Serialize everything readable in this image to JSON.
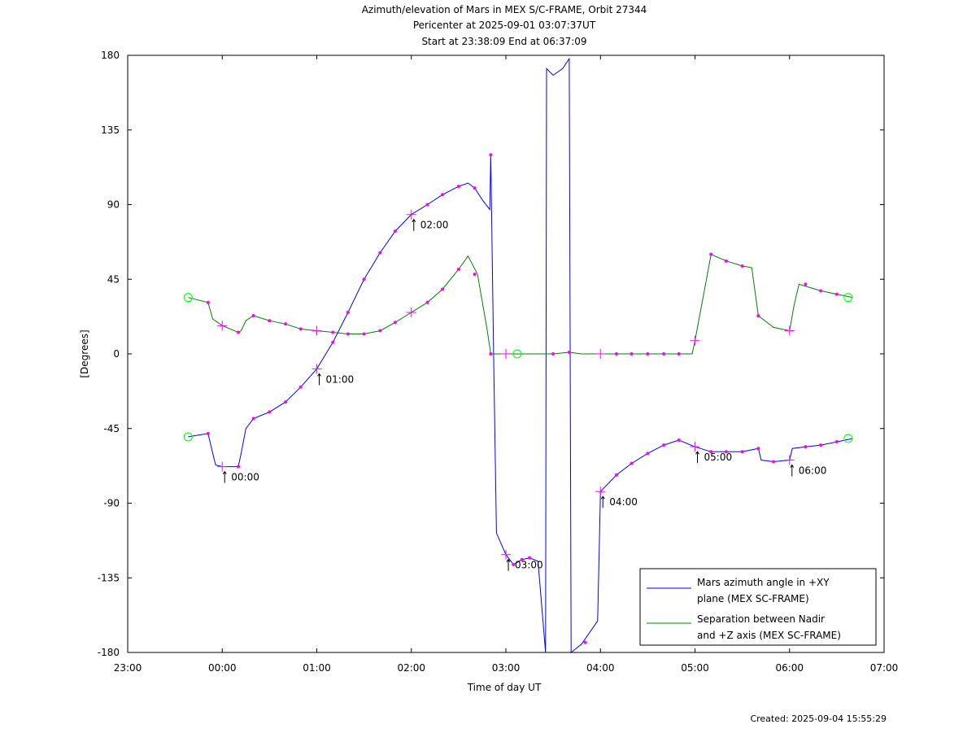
{
  "header": {
    "title": "Azimuth/elevation of Mars in MEX S/C-FRAME,  Orbit 27344",
    "pericenter": "Pericenter at 2025-09-01 03:07:37UT",
    "start_end": "Start at 23:38:09 End at 06:37:09"
  },
  "footer": {
    "created": "Created: 2025-09-04 15:55:29"
  },
  "colors": {
    "azimuth": "#0000ff",
    "separation": "#008000",
    "marker": "#ff00ff",
    "circle": "#00ff00"
  },
  "chart_data": {
    "type": "line",
    "xlabel": "Time of day UT",
    "ylabel": "[Degrees]",
    "x_unit": "hours after 23:00 UT",
    "xlim": [
      23.0,
      31.0
    ],
    "ylim": [
      -180,
      180
    ],
    "x_ticks": [
      "23:00",
      "00:00",
      "01:00",
      "02:00",
      "03:00",
      "04:00",
      "05:00",
      "06:00",
      "07:00"
    ],
    "y_ticks": [
      "180",
      "135",
      "90",
      "45",
      "0",
      "-45",
      "-90",
      "-135",
      "-180"
    ],
    "y_tick_values": [
      180,
      135,
      90,
      45,
      0,
      -45,
      -90,
      -135,
      -180
    ],
    "legend": {
      "placement": "bottom-right",
      "entries": [
        {
          "line1": "Mars azimuth angle in +XY",
          "line2": "plane (MEX SC-FRAME)"
        },
        {
          "line1": "Separation between Nadir",
          "line2": "and +Z axis (MEX SC-FRAME)"
        }
      ]
    },
    "series": [
      {
        "name": "Mars azimuth angle in +XY plane (MEX SC-FRAME)",
        "points": [
          [
            23.64,
            -50
          ],
          [
            23.85,
            -48
          ],
          [
            23.9,
            -60
          ],
          [
            23.93,
            -67
          ],
          [
            24.0,
            -68
          ],
          [
            24.1,
            -68
          ],
          [
            24.17,
            -68
          ],
          [
            24.2,
            -60
          ],
          [
            24.25,
            -45
          ],
          [
            24.33,
            -39
          ],
          [
            24.5,
            -35
          ],
          [
            24.67,
            -29
          ],
          [
            24.83,
            -20
          ],
          [
            25.0,
            -9
          ],
          [
            25.17,
            7
          ],
          [
            25.33,
            25
          ],
          [
            25.5,
            45
          ],
          [
            25.67,
            61
          ],
          [
            25.83,
            74
          ],
          [
            26.0,
            84
          ],
          [
            26.17,
            90
          ],
          [
            26.33,
            96
          ],
          [
            26.5,
            101
          ],
          [
            26.6,
            103
          ],
          [
            26.67,
            100
          ],
          [
            26.75,
            93
          ],
          [
            26.83,
            87
          ],
          [
            26.84,
            120
          ],
          [
            26.87,
            0
          ],
          [
            26.9,
            -108
          ],
          [
            27.0,
            -121
          ],
          [
            27.08,
            -127
          ],
          [
            27.17,
            -124
          ],
          [
            27.25,
            -123
          ],
          [
            27.34,
            -125
          ],
          [
            27.42,
            -180
          ],
          [
            27.43,
            172
          ],
          [
            27.5,
            168
          ],
          [
            27.6,
            172
          ],
          [
            27.67,
            178
          ],
          [
            27.69,
            -180
          ],
          [
            27.8,
            -175
          ],
          [
            27.97,
            -161
          ],
          [
            28.0,
            -83
          ],
          [
            28.17,
            -73
          ],
          [
            28.33,
            -66
          ],
          [
            28.5,
            -60
          ],
          [
            28.67,
            -55
          ],
          [
            28.83,
            -52
          ],
          [
            29.0,
            -56
          ],
          [
            29.17,
            -59
          ],
          [
            29.5,
            -59
          ],
          [
            29.67,
            -57
          ],
          [
            29.7,
            -64
          ],
          [
            29.83,
            -65
          ],
          [
            30.0,
            -64
          ],
          [
            30.03,
            -57
          ],
          [
            30.17,
            -56
          ],
          [
            30.33,
            -55
          ],
          [
            30.5,
            -53
          ],
          [
            30.67,
            -51
          ]
        ]
      },
      {
        "name": "Separation between Nadir and +Z axis (MEX SC-FRAME)",
        "points": [
          [
            23.64,
            34
          ],
          [
            23.85,
            31
          ],
          [
            23.9,
            21
          ],
          [
            24.0,
            17
          ],
          [
            24.17,
            13
          ],
          [
            24.2,
            14
          ],
          [
            24.25,
            20
          ],
          [
            24.33,
            23
          ],
          [
            24.5,
            20
          ],
          [
            24.67,
            18
          ],
          [
            24.83,
            15
          ],
          [
            25.0,
            14
          ],
          [
            25.17,
            13
          ],
          [
            25.33,
            12
          ],
          [
            25.5,
            12
          ],
          [
            25.67,
            14
          ],
          [
            25.83,
            19
          ],
          [
            26.0,
            25
          ],
          [
            26.17,
            31
          ],
          [
            26.33,
            39
          ],
          [
            26.5,
            51
          ],
          [
            26.6,
            59
          ],
          [
            26.7,
            48
          ],
          [
            26.8,
            15
          ],
          [
            26.84,
            0
          ],
          [
            27.0,
            0
          ],
          [
            27.12,
            0
          ],
          [
            27.5,
            0
          ],
          [
            27.67,
            1
          ],
          [
            27.8,
            0
          ],
          [
            28.0,
            0
          ],
          [
            28.5,
            0
          ],
          [
            28.97,
            0
          ],
          [
            29.0,
            8
          ],
          [
            29.17,
            60
          ],
          [
            29.33,
            56
          ],
          [
            29.5,
            53
          ],
          [
            29.6,
            52
          ],
          [
            29.67,
            23
          ],
          [
            29.83,
            16
          ],
          [
            30.0,
            14
          ],
          [
            30.05,
            30
          ],
          [
            30.1,
            42
          ],
          [
            30.33,
            38
          ],
          [
            30.67,
            34
          ]
        ]
      }
    ],
    "hour_markers": [
      {
        "label": "00:00",
        "x": 24.0,
        "y": -68
      },
      {
        "label": "01:00",
        "x": 25.0,
        "y": -9
      },
      {
        "label": "02:00",
        "x": 26.0,
        "y": 84
      },
      {
        "label": "03:00",
        "x": 27.0,
        "y": -121
      },
      {
        "label": "04:00",
        "x": 28.0,
        "y": -83
      },
      {
        "label": "05:00",
        "x": 29.0,
        "y": -56
      },
      {
        "label": "06:00",
        "x": 30.0,
        "y": -64
      }
    ],
    "plus_markers": [
      [
        24.0,
        17
      ],
      [
        25.0,
        14
      ],
      [
        26.0,
        25
      ],
      [
        27.0,
        0
      ],
      [
        28.0,
        0
      ],
      [
        29.0,
        8
      ],
      [
        30.0,
        14
      ]
    ],
    "dot_markers": [
      [
        23.85,
        -48
      ],
      [
        24.17,
        -68
      ],
      [
        24.33,
        -39
      ],
      [
        24.5,
        -35
      ],
      [
        24.67,
        -29
      ],
      [
        24.83,
        -20
      ],
      [
        25.17,
        7
      ],
      [
        25.33,
        25
      ],
      [
        25.5,
        45
      ],
      [
        25.67,
        61
      ],
      [
        25.83,
        74
      ],
      [
        26.17,
        90
      ],
      [
        26.33,
        96
      ],
      [
        26.5,
        101
      ],
      [
        26.67,
        100
      ],
      [
        26.84,
        120
      ],
      [
        27.08,
        -127
      ],
      [
        27.17,
        -124
      ],
      [
        27.25,
        -123
      ],
      [
        27.84,
        -174
      ],
      [
        28.17,
        -73
      ],
      [
        28.33,
        -66
      ],
      [
        28.5,
        -60
      ],
      [
        28.67,
        -55
      ],
      [
        28.83,
        -52
      ],
      [
        29.17,
        -59
      ],
      [
        29.33,
        -59
      ],
      [
        29.5,
        -59
      ],
      [
        29.67,
        -57
      ],
      [
        29.83,
        -65
      ],
      [
        30.17,
        -56
      ],
      [
        30.33,
        -55
      ],
      [
        30.5,
        -53
      ],
      [
        23.85,
        31
      ],
      [
        24.17,
        13
      ],
      [
        24.33,
        23
      ],
      [
        24.5,
        20
      ],
      [
        24.67,
        18
      ],
      [
        24.83,
        15
      ],
      [
        25.17,
        13
      ],
      [
        25.33,
        12
      ],
      [
        25.5,
        12
      ],
      [
        25.67,
        14
      ],
      [
        25.83,
        19
      ],
      [
        26.17,
        31
      ],
      [
        26.33,
        39
      ],
      [
        26.5,
        51
      ],
      [
        26.67,
        48
      ],
      [
        26.84,
        0
      ],
      [
        27.5,
        0
      ],
      [
        27.67,
        1
      ],
      [
        28.17,
        0
      ],
      [
        28.33,
        0
      ],
      [
        28.5,
        0
      ],
      [
        28.67,
        0
      ],
      [
        28.83,
        0
      ],
      [
        29.17,
        60
      ],
      [
        29.33,
        56
      ],
      [
        29.5,
        53
      ],
      [
        29.67,
        23
      ],
      [
        30.17,
        42
      ],
      [
        30.33,
        38
      ],
      [
        30.5,
        36
      ]
    ],
    "circle_markers": [
      [
        23.64,
        34
      ],
      [
        23.64,
        -50
      ],
      [
        27.12,
        0
      ],
      [
        30.62,
        34
      ],
      [
        30.62,
        -51
      ]
    ]
  }
}
